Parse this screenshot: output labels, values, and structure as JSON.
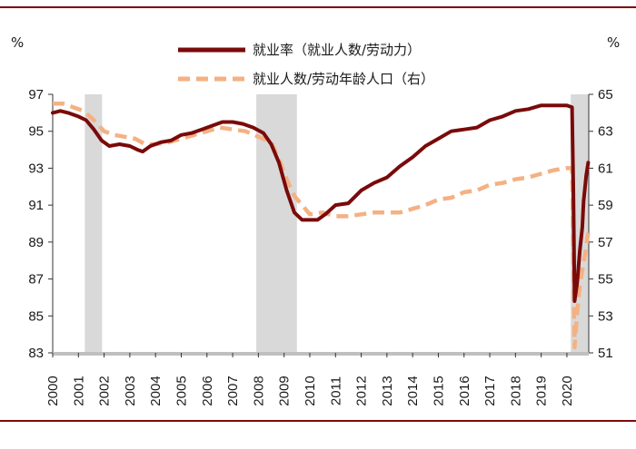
{
  "chart_data": {
    "type": "line",
    "left_axis": {
      "unit": "%",
      "min": 83,
      "max": 97,
      "ticks": [
        "97",
        "95",
        "93",
        "91",
        "89",
        "87",
        "85",
        "83"
      ]
    },
    "right_axis": {
      "unit": "%",
      "min": 51,
      "max": 65,
      "ticks": [
        "65",
        "63",
        "61",
        "59",
        "57",
        "55",
        "53",
        "51"
      ]
    },
    "x_ticks": [
      "2000",
      "2001",
      "2002",
      "2003",
      "2004",
      "2005",
      "2006",
      "2007",
      "2008",
      "2009",
      "2010",
      "2011",
      "2012",
      "2013",
      "2014",
      "2015",
      "2016",
      "2017",
      "2018",
      "2019",
      "2020"
    ],
    "x_range": [
      2000.0,
      2020.85
    ],
    "recessions": [
      [
        2001.25,
        2001.92
      ],
      [
        2007.92,
        2009.5
      ],
      [
        2020.15,
        2020.85
      ]
    ],
    "legend_position": "top-center",
    "grid": false,
    "series": [
      {
        "name": "就业率（就业人数/劳动力）",
        "axis": "left",
        "color": "#7a0a0a",
        "style": "solid",
        "points": [
          [
            2000.0,
            96.0
          ],
          [
            2000.3,
            96.1
          ],
          [
            2000.6,
            96.0
          ],
          [
            2001.0,
            95.8
          ],
          [
            2001.3,
            95.6
          ],
          [
            2001.6,
            95.1
          ],
          [
            2001.9,
            94.5
          ],
          [
            2002.2,
            94.2
          ],
          [
            2002.6,
            94.3
          ],
          [
            2003.0,
            94.2
          ],
          [
            2003.3,
            94.0
          ],
          [
            2003.5,
            93.9
          ],
          [
            2003.8,
            94.2
          ],
          [
            2004.2,
            94.4
          ],
          [
            2004.6,
            94.5
          ],
          [
            2005.0,
            94.8
          ],
          [
            2005.4,
            94.9
          ],
          [
            2005.8,
            95.1
          ],
          [
            2006.2,
            95.3
          ],
          [
            2006.6,
            95.5
          ],
          [
            2007.0,
            95.5
          ],
          [
            2007.4,
            95.4
          ],
          [
            2007.8,
            95.2
          ],
          [
            2008.2,
            94.9
          ],
          [
            2008.5,
            94.3
          ],
          [
            2008.8,
            93.3
          ],
          [
            2009.1,
            91.8
          ],
          [
            2009.4,
            90.6
          ],
          [
            2009.7,
            90.2
          ],
          [
            2010.0,
            90.2
          ],
          [
            2010.3,
            90.2
          ],
          [
            2010.6,
            90.5
          ],
          [
            2011.0,
            91.0
          ],
          [
            2011.5,
            91.1
          ],
          [
            2012.0,
            91.8
          ],
          [
            2012.5,
            92.2
          ],
          [
            2013.0,
            92.5
          ],
          [
            2013.5,
            93.1
          ],
          [
            2014.0,
            93.6
          ],
          [
            2014.5,
            94.2
          ],
          [
            2015.0,
            94.6
          ],
          [
            2015.5,
            95.0
          ],
          [
            2016.0,
            95.1
          ],
          [
            2016.5,
            95.2
          ],
          [
            2017.0,
            95.6
          ],
          [
            2017.5,
            95.8
          ],
          [
            2018.0,
            96.1
          ],
          [
            2018.5,
            96.2
          ],
          [
            2019.0,
            96.4
          ],
          [
            2019.5,
            96.4
          ],
          [
            2020.0,
            96.4
          ],
          [
            2020.2,
            96.3
          ],
          [
            2020.25,
            92.0
          ],
          [
            2020.3,
            85.8
          ],
          [
            2020.4,
            86.8
          ],
          [
            2020.5,
            88.5
          ],
          [
            2020.6,
            89.8
          ],
          [
            2020.65,
            91.2
          ],
          [
            2020.75,
            92.6
          ],
          [
            2020.83,
            93.3
          ]
        ]
      },
      {
        "name": "就业人数/劳动年龄人口（右）",
        "axis": "right",
        "color": "#f4b183",
        "style": "dashed",
        "points": [
          [
            2000.0,
            64.5
          ],
          [
            2000.4,
            64.5
          ],
          [
            2000.8,
            64.3
          ],
          [
            2001.2,
            64.1
          ],
          [
            2001.6,
            63.6
          ],
          [
            2002.0,
            63.0
          ],
          [
            2002.4,
            62.8
          ],
          [
            2002.8,
            62.7
          ],
          [
            2003.2,
            62.6
          ],
          [
            2003.6,
            62.3
          ],
          [
            2004.0,
            62.3
          ],
          [
            2004.5,
            62.4
          ],
          [
            2005.0,
            62.6
          ],
          [
            2005.5,
            62.8
          ],
          [
            2006.0,
            63.0
          ],
          [
            2006.5,
            63.2
          ],
          [
            2007.0,
            63.1
          ],
          [
            2007.5,
            63.0
          ],
          [
            2008.0,
            62.7
          ],
          [
            2008.5,
            62.4
          ],
          [
            2008.8,
            61.5
          ],
          [
            2009.1,
            60.4
          ],
          [
            2009.4,
            59.5
          ],
          [
            2009.7,
            59.0
          ],
          [
            2010.0,
            58.5
          ],
          [
            2010.5,
            58.6
          ],
          [
            2011.0,
            58.4
          ],
          [
            2011.5,
            58.4
          ],
          [
            2012.0,
            58.5
          ],
          [
            2012.5,
            58.6
          ],
          [
            2013.0,
            58.6
          ],
          [
            2013.5,
            58.6
          ],
          [
            2014.0,
            58.8
          ],
          [
            2014.5,
            59.0
          ],
          [
            2015.0,
            59.3
          ],
          [
            2015.5,
            59.4
          ],
          [
            2016.0,
            59.7
          ],
          [
            2016.5,
            59.8
          ],
          [
            2017.0,
            60.1
          ],
          [
            2017.5,
            60.2
          ],
          [
            2018.0,
            60.4
          ],
          [
            2018.5,
            60.5
          ],
          [
            2019.0,
            60.7
          ],
          [
            2019.5,
            60.9
          ],
          [
            2020.0,
            61.0
          ],
          [
            2020.2,
            61.0
          ],
          [
            2020.25,
            56.5
          ],
          [
            2020.3,
            51.3
          ],
          [
            2020.4,
            53.2
          ],
          [
            2020.5,
            54.6
          ],
          [
            2020.6,
            55.5
          ],
          [
            2020.7,
            56.3
          ],
          [
            2020.83,
            57.5
          ]
        ]
      }
    ]
  }
}
